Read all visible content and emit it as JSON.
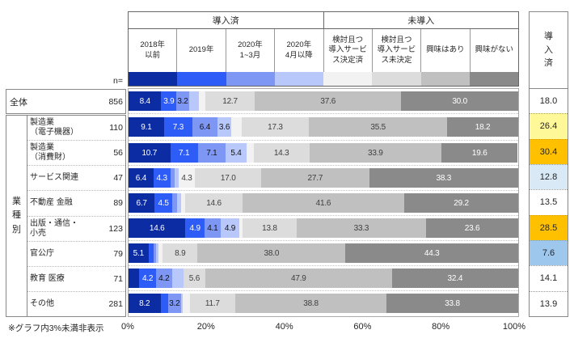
{
  "footnote": "※グラフ内3%未満非表示",
  "n_equals_label": "n=",
  "label_threshold": 3,
  "header": {
    "groups": [
      {
        "label": "導入済"
      },
      {
        "label": "未導入"
      }
    ],
    "adopted_column_header": "導\n入\n済"
  },
  "group_label": "業\n種\n別",
  "chart_data": {
    "type": "bar",
    "stacked": true,
    "orientation": "horizontal",
    "unit": "%",
    "xlim": [
      0,
      100
    ],
    "x_ticks": [
      "0%",
      "20%",
      "40%",
      "60%",
      "80%",
      "100%"
    ],
    "grid": false,
    "label_rule": "segment labels below 3% are hidden (※グラフ内3%未満非表示)",
    "segments": [
      "2018年\n以前",
      "2019年",
      "2020年\n1~3月",
      "2020年\n4月以降",
      "検討且つ\n導入サービ\nス決定済",
      "検討且つ\n導入サービ\nス未決定",
      "興味はあり",
      "興味がない"
    ],
    "segment_colors": [
      "#0c2ca3",
      "#2e5cf6",
      "#7e97f5",
      "#b8c8fa",
      "#f2f2f2",
      "#dcdcdc",
      "#c0c0c0",
      "#8a8a8a"
    ],
    "segment_label_colors": [
      "#ffffff",
      "#ffffff",
      "#111111",
      "#111111",
      "#3f3f3f",
      "#3f3f3f",
      "#3f3f3f",
      "#ffffff"
    ],
    "rows": [
      {
        "label": "全体",
        "n": 856,
        "values": [
          8.4,
          3.9,
          3.2,
          2.5,
          1.7,
          12.7,
          37.6,
          30.0
        ],
        "adopted_total": "18.0",
        "adopted_bg": "#ffffff"
      },
      {
        "label": "製造業\n（電子機器）",
        "n": 110,
        "values": [
          9.1,
          7.3,
          6.4,
          3.6,
          2.6,
          17.3,
          35.5,
          18.2
        ],
        "adopted_total": "26.4",
        "adopted_bg": "#fff899"
      },
      {
        "label": "製造業\n（消費財）",
        "n": 56,
        "values": [
          10.7,
          7.1,
          7.1,
          5.4,
          1.8,
          14.3,
          33.9,
          19.6
        ],
        "adopted_total": "30.4",
        "adopted_bg": "#ffc000"
      },
      {
        "label": "サービス関連",
        "n": 47,
        "values": [
          6.4,
          4.3,
          1.1,
          1.0,
          4.3,
          17.0,
          27.7,
          38.3
        ],
        "adopted_total": "12.8",
        "adopted_bg": "#d9eaf6"
      },
      {
        "label": "不動産 金融",
        "n": 89,
        "values": [
          6.7,
          4.5,
          1.2,
          1.1,
          1.1,
          14.6,
          41.6,
          29.2
        ],
        "adopted_total": "13.5",
        "adopted_bg": "#ffffff"
      },
      {
        "label": "出版・通信・\n小売",
        "n": 123,
        "values": [
          14.6,
          4.9,
          4.1,
          4.9,
          0.8,
          13.8,
          33.3,
          23.6
        ],
        "adopted_total": "28.5",
        "adopted_bg": "#ffc000"
      },
      {
        "label": "官公庁",
        "n": 79,
        "values": [
          5.1,
          1.3,
          0.7,
          0.5,
          1.2,
          8.9,
          38.0,
          44.3
        ],
        "adopted_total": "7.6",
        "adopted_bg": "#9dc7ec"
      },
      {
        "label": "教育 医療",
        "n": 71,
        "values": [
          2.8,
          4.2,
          4.2,
          2.9,
          0.0,
          5.6,
          47.9,
          32.4
        ],
        "adopted_total": "14.1",
        "adopted_bg": "#ffffff"
      },
      {
        "label": "その他",
        "n": 281,
        "values": [
          8.2,
          2.0,
          3.2,
          0.5,
          1.8,
          11.7,
          38.8,
          33.8
        ],
        "adopted_total": "13.9",
        "adopted_bg": "#ffffff"
      }
    ]
  }
}
